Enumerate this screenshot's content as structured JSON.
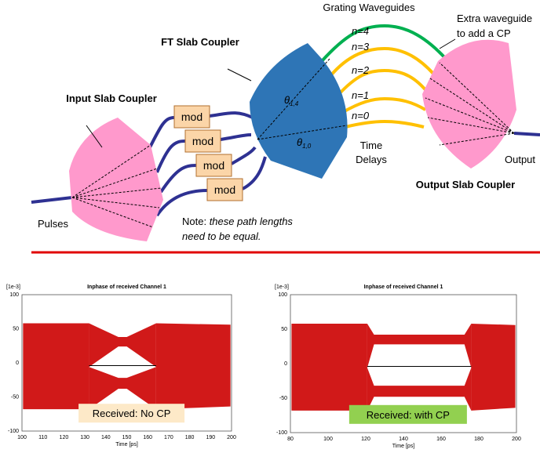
{
  "diagram": {
    "labels": {
      "grating": "Grating Waveguides",
      "extra": [
        "Extra waveguide",
        "to add a CP"
      ],
      "ft_slab": "FT Slab Coupler",
      "input_slab": "Input Slab Coupler",
      "output_slab": "Output Slab Coupler",
      "time_delays": [
        "Time",
        "Delays"
      ],
      "output": "Output",
      "pulses": "Pulses",
      "note_prefix": "Note: ",
      "note_italic": [
        "these path lengths",
        "need to be equal."
      ]
    },
    "modulators": [
      "mod",
      "mod",
      "mod",
      "mod"
    ],
    "orders": [
      "n=4",
      "n=3",
      "n=2",
      "n=1",
      "n=0"
    ],
    "angles": [
      {
        "symbol": "θ",
        "sub": "1,4"
      },
      {
        "symbol": "θ",
        "sub": "1,0"
      }
    ]
  },
  "plots": [
    {
      "title": "Inphase of received Channel 1",
      "scale": "[1e-3]",
      "xlabel": "Time [ps]",
      "yticks": [
        100,
        50,
        0,
        -50,
        -100
      ],
      "xticks": [
        100,
        110,
        120,
        130,
        140,
        150,
        160,
        170,
        180,
        190,
        200
      ],
      "badge": "Received: No CP"
    },
    {
      "title": "Inphase of received Channel 1",
      "scale": "[1e-3]",
      "xlabel": "Time [ps]",
      "yticks": [
        100,
        50,
        0,
        -50,
        -100
      ],
      "xticks": [
        80,
        100,
        120,
        140,
        160,
        180,
        200
      ],
      "badge": "Received: with CP"
    }
  ]
}
